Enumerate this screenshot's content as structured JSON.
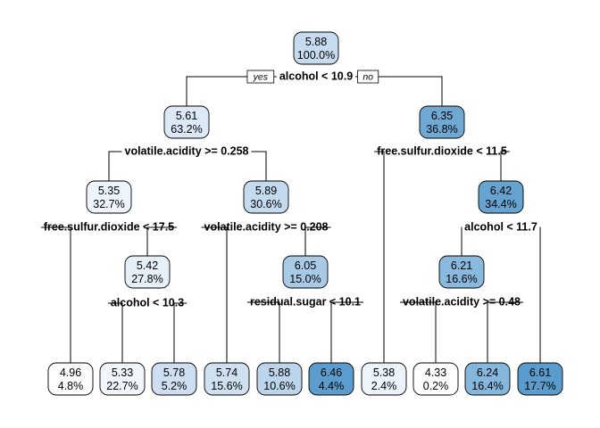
{
  "tree": {
    "branch_labels": {
      "yes": "yes",
      "no": "no"
    },
    "nodes": [
      {
        "id": 1,
        "value": "5.88",
        "pct": "100.0%",
        "fill": "#c6dbef",
        "split": "alcohol < 10.9"
      },
      {
        "id": 2,
        "value": "5.61",
        "pct": "63.2%",
        "fill": "#dce9f6",
        "split": "volatile.acidity >= 0.258"
      },
      {
        "id": 3,
        "value": "6.35",
        "pct": "36.8%",
        "fill": "#6fa8d3",
        "split": "free.sulfur.dioxide < 11.5"
      },
      {
        "id": 4,
        "value": "5.35",
        "pct": "32.7%",
        "fill": "#edf4fb",
        "split": "free.sulfur.dioxide < 17.5"
      },
      {
        "id": 5,
        "value": "5.89",
        "pct": "30.6%",
        "fill": "#c4daee",
        "split": "volatile.acidity >= 0.208"
      },
      {
        "id": 7,
        "value": "6.42",
        "pct": "34.4%",
        "fill": "#66a3d0",
        "split": "alcohol < 11.7"
      },
      {
        "id": 9,
        "value": "5.42",
        "pct": "27.8%",
        "fill": "#e6f0f9",
        "split": "alcohol < 10.3"
      },
      {
        "id": 11,
        "value": "6.05",
        "pct": "15.0%",
        "fill": "#a8cae6",
        "split": "residual.sugar < 10.1"
      },
      {
        "id": 14,
        "value": "6.21",
        "pct": "16.6%",
        "fill": "#8ab9de",
        "split": "volatile.acidity >= 0.48"
      },
      {
        "id": 8,
        "value": "4.96",
        "pct": "4.8%",
        "fill": "#ffffff"
      },
      {
        "id": 18,
        "value": "5.33",
        "pct": "22.7%",
        "fill": "#f0f6fc"
      },
      {
        "id": 19,
        "value": "5.78",
        "pct": "5.2%",
        "fill": "#cddff0"
      },
      {
        "id": 10,
        "value": "5.74",
        "pct": "15.6%",
        "fill": "#cfe1f1"
      },
      {
        "id": 22,
        "value": "5.88",
        "pct": "10.6%",
        "fill": "#bdd5ec"
      },
      {
        "id": 23,
        "value": "6.46",
        "pct": "4.4%",
        "fill": "#5c9dcd"
      },
      {
        "id": 6,
        "value": "5.38",
        "pct": "2.4%",
        "fill": "#edf4fb"
      },
      {
        "id": 28,
        "value": "4.33",
        "pct": "0.2%",
        "fill": "#ffffff"
      },
      {
        "id": 29,
        "value": "6.24",
        "pct": "16.4%",
        "fill": "#85b7dd"
      },
      {
        "id": 15,
        "value": "6.61",
        "pct": "17.7%",
        "fill": "#5a9ccc"
      }
    ]
  }
}
